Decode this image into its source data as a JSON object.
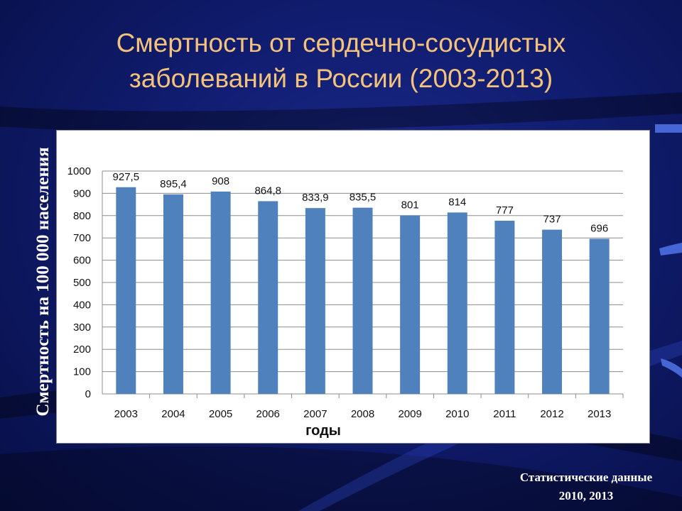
{
  "slide": {
    "title_line1": "Смертность от сердечно-сосудистых",
    "title_line2": "заболеваний в России (2003-2013)",
    "source_line1": "Статистические данные",
    "source_line2": "2010, 2013",
    "colors": {
      "background": "#101c6e",
      "title": "#f4c27a",
      "bar": "#4f81bd"
    }
  },
  "chart_data": {
    "type": "bar",
    "title": "",
    "xlabel": "годы",
    "ylabel": "Смертность на 100 000 населения",
    "categories": [
      "2003",
      "2004",
      "2005",
      "2006",
      "2007",
      "2008",
      "2009",
      "2010",
      "2011",
      "2012",
      "2013"
    ],
    "values": [
      927.5,
      895.4,
      908,
      864.8,
      833.9,
      835.5,
      801,
      814,
      777,
      737,
      696
    ],
    "value_labels": [
      "927,5",
      "895,4",
      "908",
      "864,8",
      "833,9",
      "835,5",
      "801",
      "814",
      "777",
      "737",
      "696"
    ],
    "ylim": [
      0,
      1000
    ],
    "yticks": [
      0,
      100,
      200,
      300,
      400,
      500,
      600,
      700,
      800,
      900,
      1000
    ],
    "grid": true,
    "legend": "none"
  }
}
